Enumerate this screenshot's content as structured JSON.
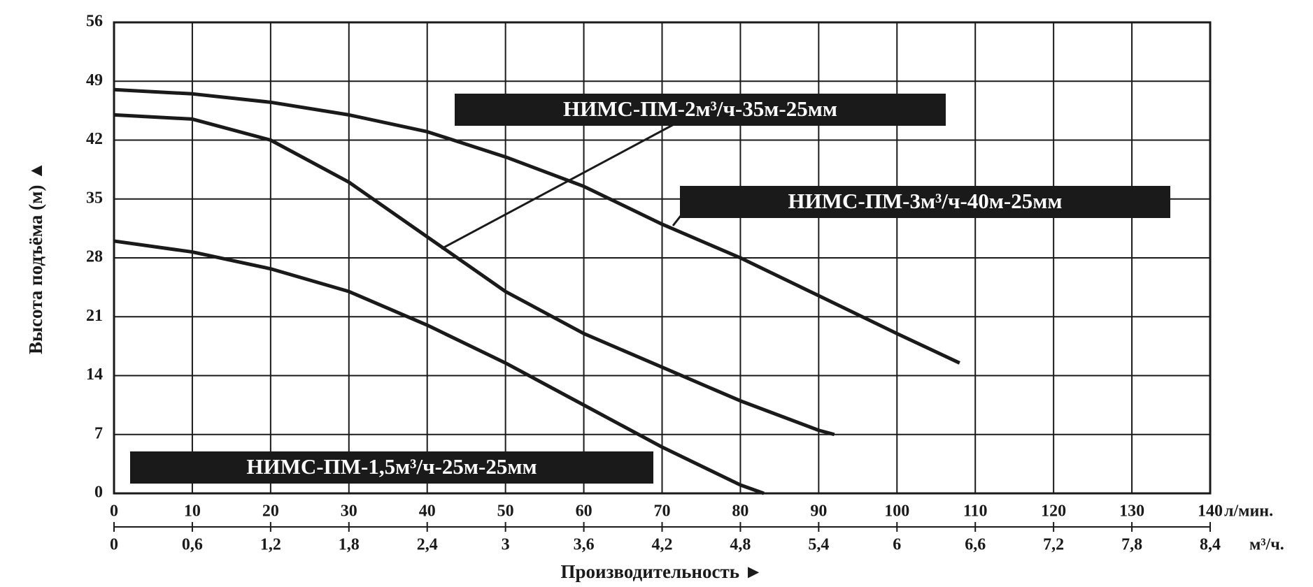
{
  "chart_data": {
    "type": "line",
    "y_label": "Высота подъёма (м) ▲",
    "x_label": "Производительность ►",
    "x_unit": "л/мин.",
    "x2_unit": "м³/ч.",
    "xlim": [
      0,
      140
    ],
    "xticks": [
      0,
      10,
      20,
      30,
      40,
      50,
      60,
      70,
      80,
      90,
      100,
      110,
      120,
      130,
      140
    ],
    "x2lim": [
      0,
      8.4
    ],
    "x2ticks": [
      0,
      {
        "value": 0.6,
        "label": "0,6"
      },
      {
        "value": 1.2,
        "label": "1,2"
      },
      {
        "value": 1.8,
        "label": "1,8"
      },
      {
        "value": 2.4,
        "label": "2,4"
      },
      3,
      {
        "value": 3.6,
        "label": "3,6"
      },
      {
        "value": 4.2,
        "label": "4,2"
      },
      {
        "value": 4.8,
        "label": "4,8"
      },
      {
        "value": 5.4,
        "label": "5,4"
      },
      6,
      {
        "value": 6.6,
        "label": "6,6"
      },
      {
        "value": 7.2,
        "label": "7,2"
      },
      {
        "value": 7.8,
        "label": "7,8"
      },
      {
        "value": 8.4,
        "label": "8,4"
      }
    ],
    "ylim": [
      0,
      56
    ],
    "yticks": [
      0,
      7,
      14,
      21,
      28,
      35,
      42,
      49,
      56
    ],
    "grid": true,
    "series": [
      {
        "name": "НИМС-ПМ-1,5м³/ч-25м-25мм",
        "color": "#1a1a1a",
        "x": [
          0,
          10,
          20,
          30,
          40,
          50,
          60,
          70,
          80,
          83
        ],
        "values": [
          30,
          28.7,
          26.7,
          24,
          20,
          15.5,
          10.5,
          5.5,
          1,
          0
        ]
      },
      {
        "name": "НИМС-ПМ-2м³/ч-35м-25мм",
        "color": "#1a1a1a",
        "x": [
          0,
          10,
          20,
          30,
          40,
          50,
          60,
          70,
          80,
          90,
          92
        ],
        "values": [
          45,
          44.5,
          42,
          37,
          30.5,
          24,
          19,
          15,
          11,
          7.5,
          7
        ]
      },
      {
        "name": "НИМС-ПМ-3м³/ч-40м-25мм",
        "color": "#1a1a1a",
        "x": [
          0,
          10,
          20,
          30,
          40,
          50,
          60,
          70,
          80,
          90,
          100,
          108
        ],
        "values": [
          48,
          47.5,
          46.5,
          45,
          43,
          40,
          36.5,
          32,
          28,
          23.5,
          19,
          15.5
        ]
      }
    ]
  }
}
